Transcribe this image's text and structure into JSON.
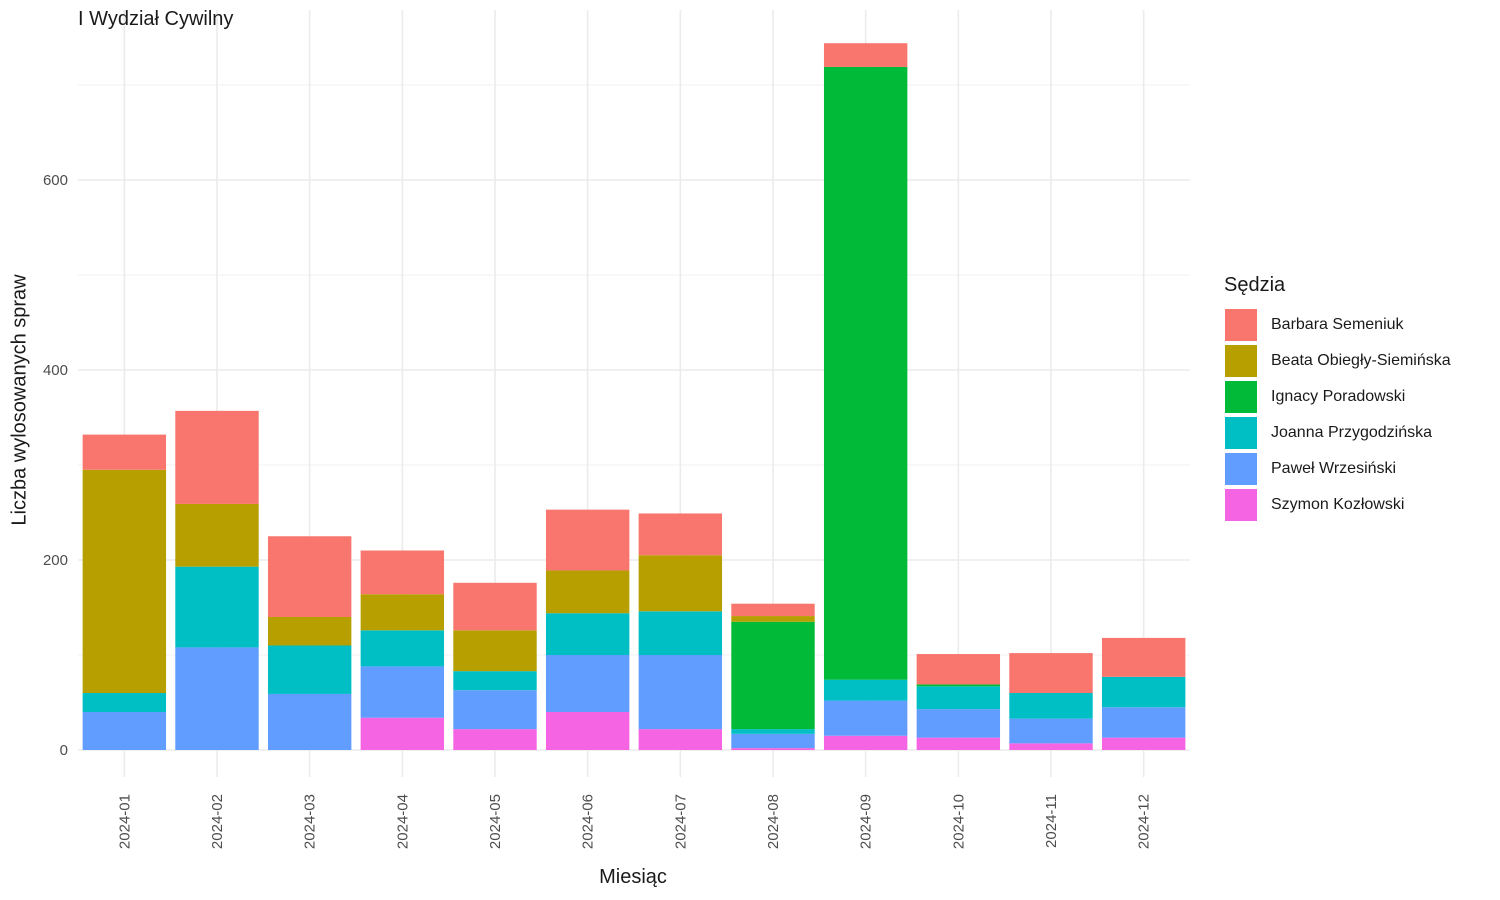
{
  "chart_data": {
    "type": "bar",
    "stacked": true,
    "title": "I Wydział Cywilny",
    "xlabel": "Miesiąc",
    "ylabel": "Liczba wylosowanych spraw",
    "ylim": [
      0,
      740
    ],
    "yticks": [
      0,
      200,
      400,
      600
    ],
    "grid": true,
    "legend_position": "right",
    "legend_title": "Sędzia",
    "categories": [
      "2024-01",
      "2024-02",
      "2024-03",
      "2024-04",
      "2024-05",
      "2024-06",
      "2024-07",
      "2024-08",
      "2024-09",
      "2024-10",
      "2024-11",
      "2024-12"
    ],
    "series": [
      {
        "name": "Szymon Kozłowski",
        "color": "#F564E3",
        "values": [
          0,
          0,
          0,
          34,
          22,
          40,
          22,
          2,
          15,
          13,
          7,
          13
        ]
      },
      {
        "name": "Paweł Wrzesiński",
        "color": "#619CFF",
        "values": [
          40,
          108,
          59,
          54,
          41,
          60,
          78,
          15,
          37,
          30,
          26,
          32
        ]
      },
      {
        "name": "Joanna Przygodzińska",
        "color": "#00BFC4",
        "values": [
          20,
          85,
          51,
          38,
          20,
          44,
          46,
          5,
          22,
          24,
          27,
          32
        ]
      },
      {
        "name": "Ignacy Poradowski",
        "color": "#00BA38",
        "values": [
          0,
          0,
          0,
          0,
          0,
          0,
          0,
          113,
          645,
          2,
          0,
          0
        ]
      },
      {
        "name": "Beata Obiegły-Siemińska",
        "color": "#B79F00",
        "values": [
          235,
          66,
          30,
          38,
          43,
          45,
          59,
          6,
          0,
          0,
          0,
          0
        ]
      },
      {
        "name": "Barbara Semeniuk",
        "color": "#F8766D",
        "values": [
          37,
          98,
          85,
          46,
          50,
          64,
          44,
          13,
          25,
          32,
          42,
          41
        ]
      }
    ],
    "legend_order": [
      "Barbara Semeniuk",
      "Beata Obiegły-Siemińska",
      "Ignacy Poradowski",
      "Joanna Przygodzińska",
      "Paweł Wrzesiński",
      "Szymon Kozłowski"
    ]
  }
}
